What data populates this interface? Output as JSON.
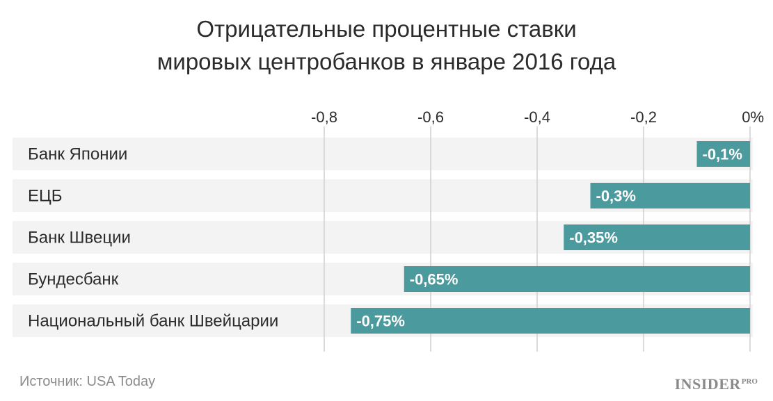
{
  "title": {
    "line1": "Отрицательные процентные ставки",
    "line2": "мировых центробанков в январе 2016 года"
  },
  "source": "Источник: USA Today",
  "brand": {
    "name": "INSIDER",
    "suffix": "PRO"
  },
  "colors": {
    "bar": "#4b9a9e",
    "row_bg": "#f3f3f3",
    "grid": "#cfcfcf",
    "text": "#2b2b2b",
    "value_text": "#ffffff"
  },
  "chart_data": {
    "type": "bar",
    "orientation": "horizontal",
    "categories": [
      "Банк Японии",
      "ЕЦБ",
      "Банк Швеции",
      "Бундесбанк",
      "Национальный банк Швейцарии"
    ],
    "values": [
      -0.1,
      -0.3,
      -0.35,
      -0.65,
      -0.75
    ],
    "value_labels": [
      "-0,1%",
      "-0,3%",
      "-0,35%",
      "-0,65%",
      "-0,75%"
    ],
    "ticks": [
      -0.8,
      -0.6,
      -0.4,
      -0.2,
      0
    ],
    "tick_labels": [
      "-0,8",
      "-0,6",
      "-0,4",
      "-0,2",
      "0%"
    ],
    "xlim": [
      -0.8,
      0
    ],
    "grid": true,
    "axis_position": "top"
  }
}
